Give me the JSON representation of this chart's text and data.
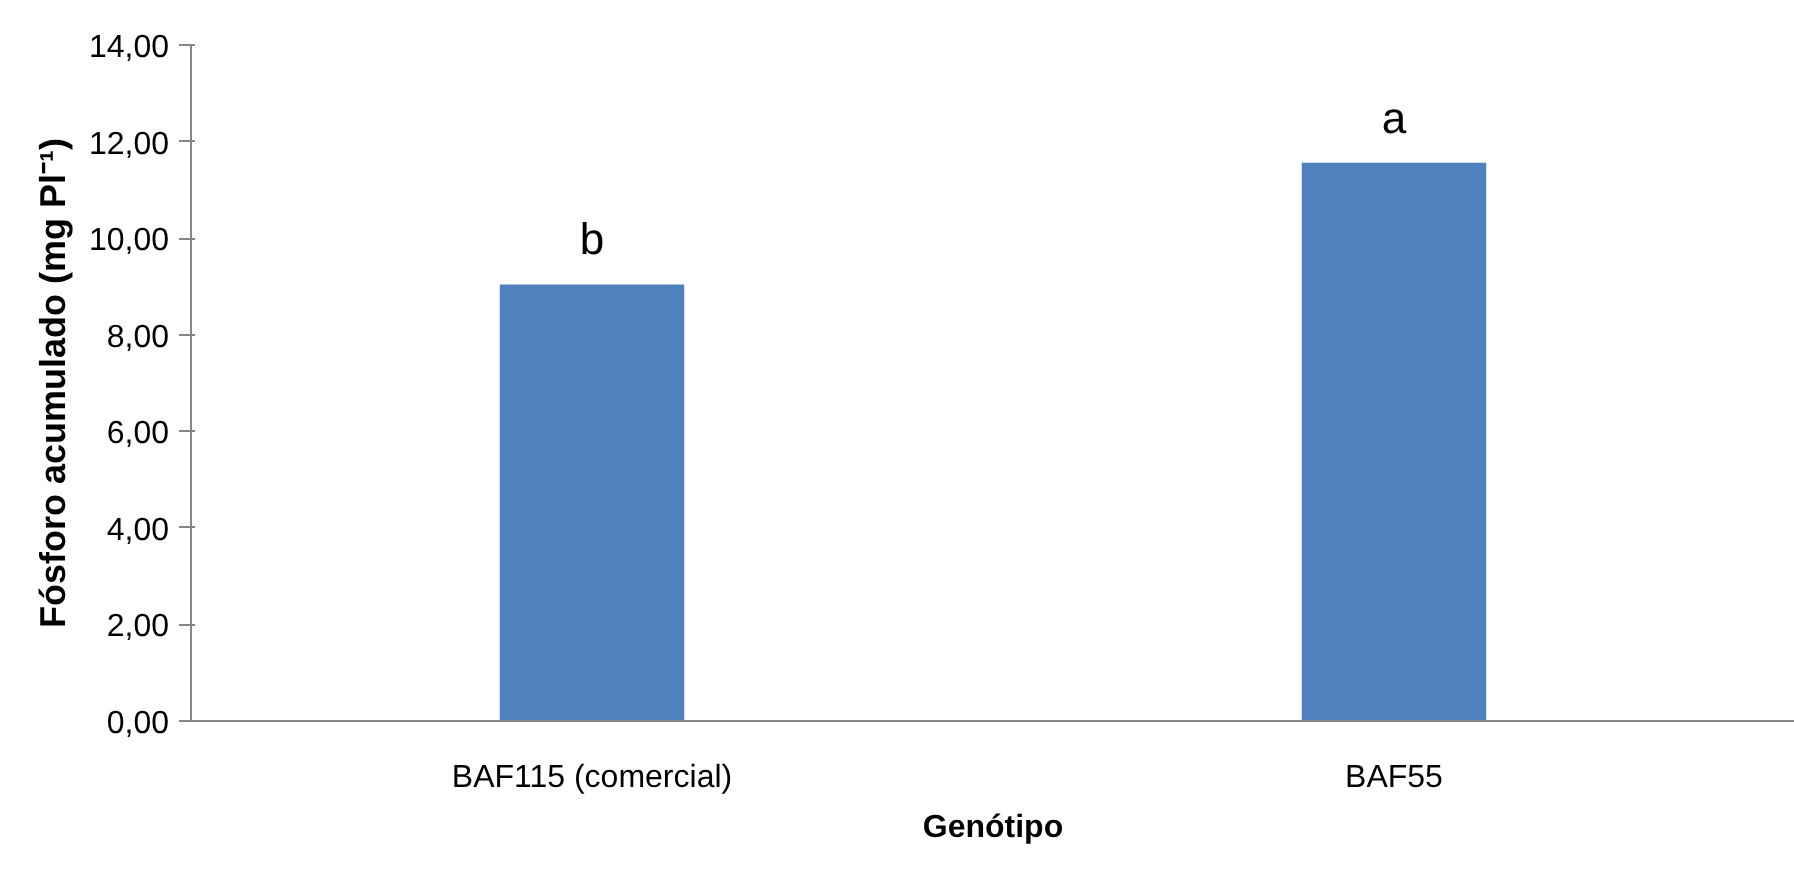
{
  "chart_data": {
    "type": "bar",
    "xlabel": "Genótipo",
    "ylabel": "Fósforo acumulado (mg Pl⁻¹)",
    "categories": [
      "BAF115 (comercial)",
      "BAF55"
    ],
    "values": [
      9.04,
      11.56
    ],
    "color": "#4f81bd",
    "ylim": [
      0,
      14
    ],
    "yticks": [
      {
        "value": 0,
        "label": "0,00"
      },
      {
        "value": 2,
        "label": "2,00"
      },
      {
        "value": 4,
        "label": "4,00"
      },
      {
        "value": 6,
        "label": "6,00"
      },
      {
        "value": 8,
        "label": "8,00"
      },
      {
        "value": 10,
        "label": "10,00"
      },
      {
        "value": 12,
        "label": "12,00"
      },
      {
        "value": 14,
        "label": "14,00"
      }
    ],
    "annotations": [
      {
        "text": "b",
        "x": "BAF115 (comercial)",
        "y": 9.04
      },
      {
        "text": "a",
        "x": "BAF55",
        "y": 11.56
      }
    ],
    "grid": false
  }
}
